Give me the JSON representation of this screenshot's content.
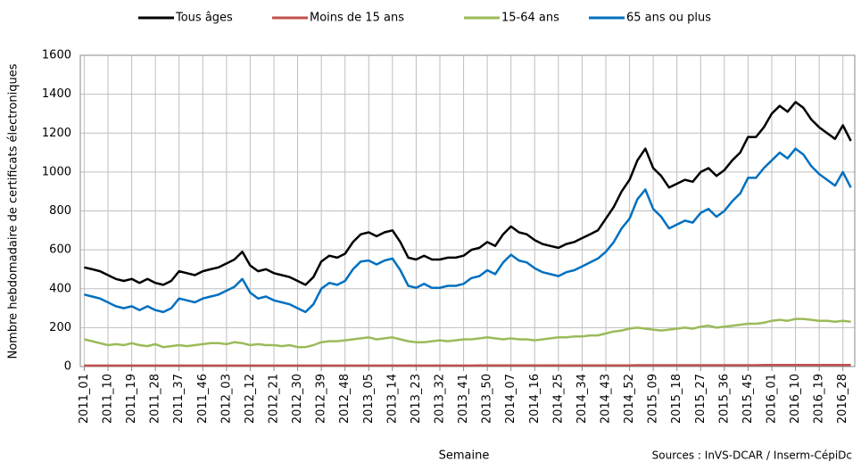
{
  "chart_data": {
    "type": "line",
    "y_label": "Nombre hebdomadaire de certificats électroniques",
    "x_label": "Semaine",
    "source": "Sources : InVS-DCAR / Inserm-CépiDc",
    "legend": "top",
    "grid": true,
    "ylim": [
      0,
      1600
    ],
    "yticks": [
      0,
      200,
      400,
      600,
      800,
      1000,
      1200,
      1400,
      1600
    ],
    "categories": [
      "2011_01",
      null,
      null,
      "2011_10",
      null,
      null,
      "2011_19",
      null,
      null,
      "2011_28",
      null,
      null,
      "2011_37",
      null,
      null,
      "2011_46",
      null,
      null,
      "2012_03",
      null,
      null,
      "2012_12",
      null,
      null,
      "2012_21",
      null,
      null,
      "2012_30",
      null,
      null,
      "2012_39",
      null,
      null,
      "2012_48",
      null,
      null,
      "2013_05",
      null,
      null,
      "2013_14",
      null,
      null,
      "2013_23",
      null,
      null,
      "2013_32",
      null,
      null,
      "2013_41",
      null,
      null,
      "2013_50",
      null,
      null,
      "2014_07",
      null,
      null,
      "2014_16",
      null,
      null,
      "2014_25",
      null,
      null,
      "2014_34",
      null,
      null,
      "2014_43",
      null,
      null,
      "2014_52",
      null,
      null,
      "2015_09",
      null,
      null,
      "2015_18",
      null,
      null,
      "2015_27",
      null,
      null,
      "2015_36",
      null,
      null,
      "2015_45",
      null,
      null,
      "2016_01",
      null,
      null,
      "2016_10",
      null,
      null,
      "2016_19",
      null,
      null,
      "2016_28",
      null
    ],
    "series": [
      {
        "name": "Tous âges",
        "color": "#000000",
        "values": [
          510,
          500,
          490,
          470,
          450,
          440,
          450,
          430,
          450,
          430,
          420,
          440,
          490,
          480,
          470,
          490,
          500,
          510,
          530,
          550,
          590,
          520,
          490,
          500,
          480,
          470,
          460,
          440,
          420,
          460,
          540,
          570,
          560,
          580,
          640,
          680,
          690,
          670,
          690,
          700,
          640,
          560,
          550,
          570,
          550,
          550,
          560,
          560,
          570,
          600,
          610,
          640,
          620,
          680,
          720,
          690,
          680,
          650,
          630,
          620,
          610,
          630,
          640,
          660,
          680,
          700,
          760,
          820,
          900,
          960,
          1060,
          1120,
          1020,
          980,
          920,
          940,
          960,
          950,
          1000,
          1020,
          980,
          1010,
          1060,
          1100,
          1180,
          1180,
          1230,
          1300,
          1340,
          1310,
          1360,
          1330,
          1270,
          1230,
          1200,
          1170,
          1240,
          1160
        ]
      },
      {
        "name": "Moins de 15 ans",
        "color": "#c0504d",
        "values": [
          5,
          5,
          5,
          5,
          5,
          5,
          5,
          5,
          5,
          5,
          5,
          5,
          5,
          5,
          5,
          5,
          5,
          5,
          5,
          5,
          5,
          5,
          5,
          5,
          5,
          5,
          5,
          5,
          5,
          5,
          5,
          5,
          5,
          5,
          5,
          5,
          5,
          5,
          5,
          5,
          5,
          5,
          5,
          5,
          5,
          5,
          5,
          5,
          5,
          5,
          6,
          6,
          6,
          6,
          6,
          6,
          6,
          6,
          6,
          6,
          6,
          6,
          6,
          6,
          6,
          6,
          6,
          6,
          6,
          6,
          7,
          7,
          7,
          7,
          7,
          7,
          7,
          7,
          7,
          7,
          7,
          7,
          7,
          7,
          7,
          7,
          8,
          8,
          8,
          8,
          8,
          8,
          8,
          8,
          8,
          8,
          8,
          8
        ]
      },
      {
        "name": "15-64 ans",
        "color": "#9bbb59",
        "values": [
          140,
          130,
          120,
          110,
          115,
          110,
          120,
          110,
          105,
          115,
          100,
          105,
          110,
          105,
          110,
          115,
          120,
          120,
          115,
          125,
          120,
          110,
          115,
          110,
          110,
          105,
          110,
          100,
          100,
          110,
          125,
          130,
          130,
          135,
          140,
          145,
          150,
          140,
          145,
          150,
          140,
          130,
          125,
          125,
          130,
          135,
          130,
          135,
          140,
          140,
          145,
          150,
          145,
          140,
          145,
          140,
          140,
          135,
          140,
          145,
          150,
          150,
          155,
          155,
          160,
          160,
          170,
          180,
          185,
          195,
          200,
          195,
          190,
          185,
          190,
          195,
          200,
          195,
          205,
          210,
          200,
          205,
          210,
          215,
          220,
          220,
          225,
          235,
          240,
          235,
          245,
          245,
          240,
          235,
          235,
          230,
          235,
          230
        ]
      },
      {
        "name": "65 ans ou plus",
        "color": "#0070c0",
        "values": [
          370,
          360,
          350,
          330,
          310,
          300,
          310,
          290,
          310,
          290,
          280,
          300,
          350,
          340,
          330,
          350,
          360,
          370,
          390,
          410,
          450,
          380,
          350,
          360,
          340,
          330,
          320,
          300,
          280,
          320,
          400,
          430,
          420,
          440,
          500,
          540,
          545,
          525,
          545,
          555,
          495,
          415,
          405,
          425,
          405,
          405,
          415,
          415,
          425,
          455,
          465,
          495,
          475,
          535,
          575,
          545,
          535,
          505,
          485,
          475,
          465,
          485,
          495,
          515,
          535,
          555,
          590,
          640,
          710,
          760,
          860,
          910,
          810,
          770,
          710,
          730,
          750,
          740,
          790,
          810,
          770,
          800,
          850,
          890,
          970,
          970,
          1020,
          1060,
          1100,
          1070,
          1120,
          1090,
          1030,
          990,
          960,
          930,
          1000,
          920
        ]
      }
    ]
  }
}
